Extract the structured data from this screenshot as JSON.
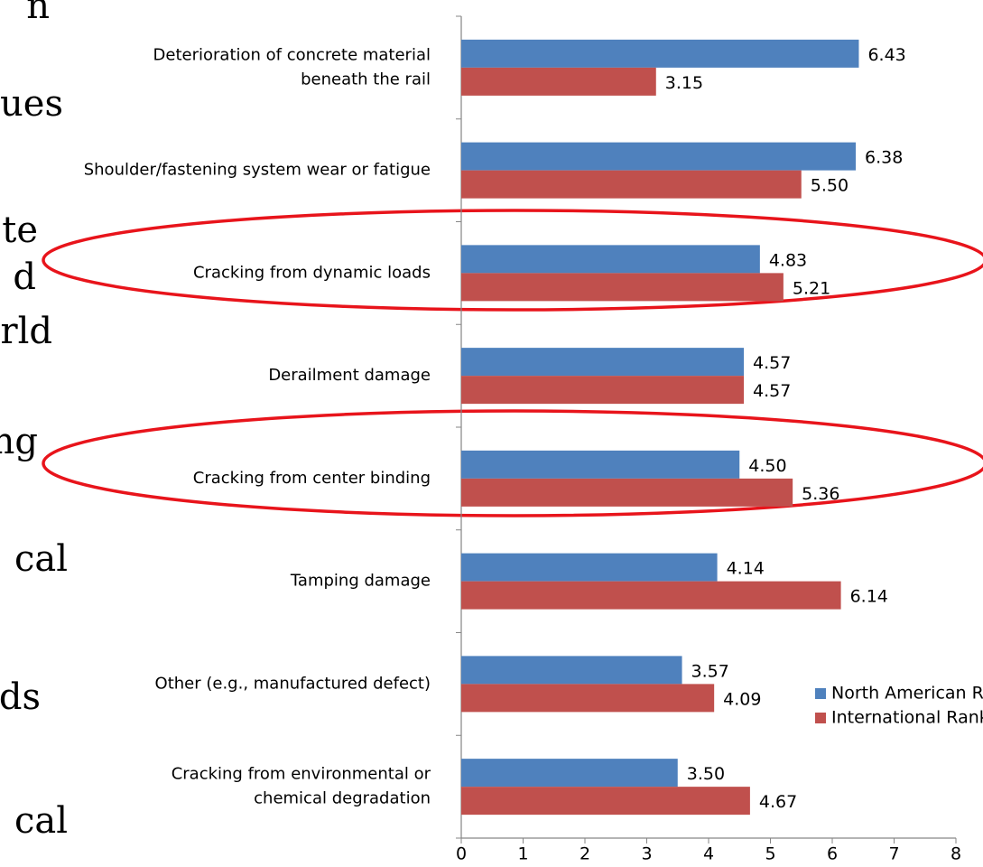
{
  "slide_text_fragments": [
    "n",
    "ues",
    "te",
    "d",
    "rld",
    "ng",
    "cal",
    "ds",
    "cal"
  ],
  "chart_data": {
    "type": "hbar",
    "categories": [
      [
        "Deterioration of concrete material",
        "beneath the rail"
      ],
      [
        "Shoulder/fastening system wear or fatigue"
      ],
      [
        "Cracking from dynamic loads"
      ],
      [
        "Derailment damage"
      ],
      [
        "Cracking from center binding"
      ],
      [
        "Tamping damage"
      ],
      [
        "Other (e.g., manufactured defect)"
      ],
      [
        "Cracking from environmental or",
        "chemical degradation"
      ]
    ],
    "series": [
      {
        "name": "North American Rank",
        "color": "#4f81bd",
        "values": [
          6.43,
          6.38,
          4.83,
          4.57,
          4.5,
          4.14,
          3.57,
          3.5
        ],
        "value_labels": [
          "6.43",
          "6.38",
          "4.83",
          "4.57",
          "4.50",
          "4.14",
          "3.57",
          "3.50"
        ]
      },
      {
        "name": "International Rank",
        "color": "#c0504d",
        "values": [
          3.15,
          5.5,
          5.21,
          4.57,
          5.36,
          6.14,
          4.09,
          4.67
        ],
        "value_labels": [
          "3.15",
          "5.50",
          "5.21",
          "4.57",
          "5.36",
          "6.14",
          "4.09",
          "4.67"
        ]
      }
    ],
    "xlim": [
      0,
      8
    ],
    "xticks": [
      0,
      1,
      2,
      3,
      4,
      5,
      6,
      7,
      8
    ],
    "legend": "lower right"
  }
}
